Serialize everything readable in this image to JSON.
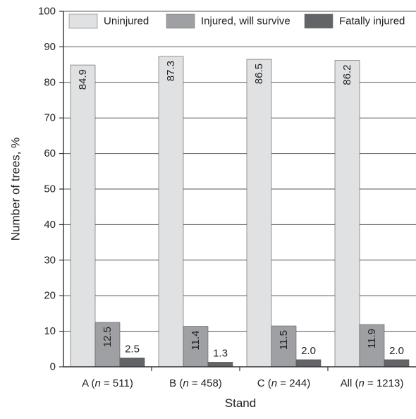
{
  "chart_data": {
    "type": "bar",
    "title": "",
    "xlabel": "Stand",
    "ylabel": "Number of trees, %",
    "ylim": [
      0,
      100
    ],
    "yticks": [
      0,
      10,
      20,
      30,
      40,
      50,
      60,
      70,
      80,
      90,
      100
    ],
    "grid": "horizontal",
    "legend_position": "top",
    "categories": [
      {
        "prefix": "A (",
        "italic": "n",
        "suffix": " = 511)"
      },
      {
        "prefix": "B (",
        "italic": "n",
        "suffix": " = 458)"
      },
      {
        "prefix": "C (",
        "italic": "n",
        "suffix": " = 244)"
      },
      {
        "prefix": "All (",
        "italic": "n",
        "suffix": " = 1213)"
      }
    ],
    "series": [
      {
        "name": "Uninjured",
        "color": "#e0e1e3",
        "values": [
          84.9,
          87.3,
          86.5,
          86.2
        ],
        "labels": [
          "84.9",
          "87.3",
          "86.5",
          "86.2"
        ]
      },
      {
        "name": "Injured, will survive",
        "color": "#9ea0a3",
        "values": [
          12.5,
          11.4,
          11.5,
          11.9
        ],
        "labels": [
          "12.5",
          "11.4",
          "11.5",
          "11.9"
        ]
      },
      {
        "name": "Fatally injured",
        "color": "#626467",
        "values": [
          2.5,
          1.3,
          2.0,
          2.0
        ],
        "labels": [
          "2.5",
          "1.3",
          "2.0",
          "2.0"
        ]
      }
    ]
  }
}
